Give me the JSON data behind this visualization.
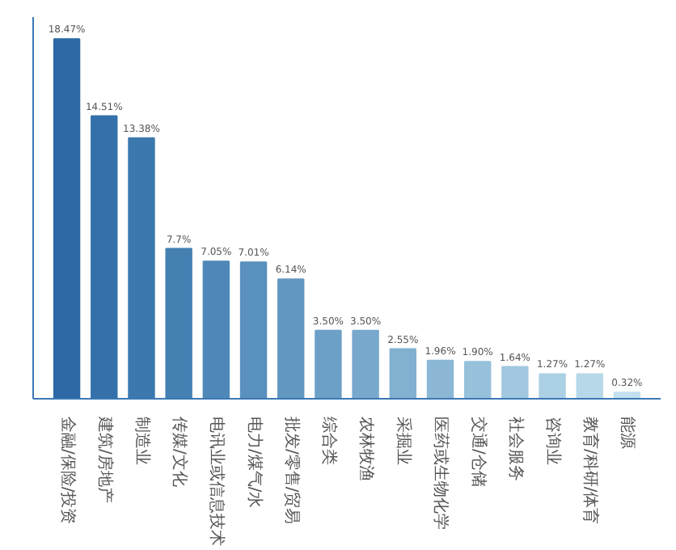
{
  "chart_data": {
    "type": "bar",
    "categories": [
      "金融/保险/投资",
      "建筑/房地产",
      "制造业",
      "传媒/文化",
      "电讯业或信息技术",
      "电力/煤气/水",
      "批发/零售/贸易",
      "综合类",
      "农林牧渔",
      "采掘业",
      "医药或生物化学",
      "交通/仓储",
      "社会服务",
      "咨询业",
      "教育/科研/体育",
      "能源"
    ],
    "values": [
      18.47,
      14.51,
      13.38,
      7.7,
      7.05,
      7.01,
      6.14,
      3.5,
      3.5,
      2.55,
      1.96,
      1.9,
      1.64,
      1.27,
      1.27,
      0.32
    ],
    "value_labels": [
      "18.47%",
      "14.51%",
      "13.38%",
      "7.7%",
      "7.05%",
      "7.01%",
      "6.14%",
      "3.50%",
      "3.50%",
      "2.55%",
      "1.96%",
      "1.90%",
      "1.64%",
      "1.27%",
      "1.27%",
      "0.32%"
    ],
    "colors": [
      "#2d6aa5",
      "#3471aa",
      "#3b78ae",
      "#4580b3",
      "#4f88b8",
      "#5990bd",
      "#6398c2",
      "#6da0c7",
      "#78a8cc",
      "#82b0d1",
      "#8cb8d6",
      "#97c0db",
      "#a1c8e0",
      "#acd0e4",
      "#b7d8e9",
      "#c3e0ee"
    ],
    "ylim": [
      0,
      19.6
    ],
    "tick_labels": "x",
    "grid": false
  }
}
